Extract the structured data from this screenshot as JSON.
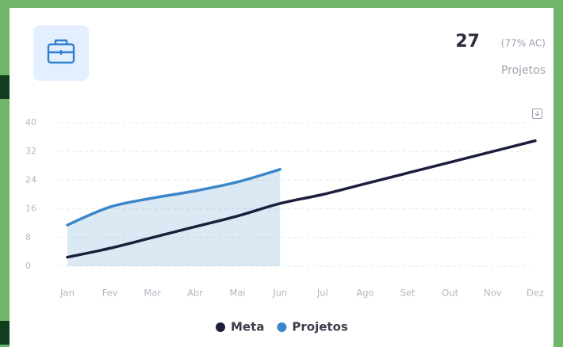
{
  "kpi": {
    "value": 27,
    "note": "(77% AC)",
    "label": "Projetos"
  },
  "chart_data": {
    "type": "line",
    "categories": [
      "Jan",
      "Fev",
      "Mar",
      "Abr",
      "Mai",
      "Jun",
      "Jul",
      "Ago",
      "Set",
      "Out",
      "Nov",
      "Dez"
    ],
    "series": [
      {
        "name": "Meta",
        "color": "#1b1f3b",
        "area": false,
        "values": [
          2.5,
          5,
          8,
          11,
          14,
          17.5,
          20,
          23,
          26,
          29,
          32,
          35
        ]
      },
      {
        "name": "Projetos",
        "color": "#3a86c8",
        "area": true,
        "values": [
          11.5,
          16.5,
          19,
          21,
          23.5,
          27,
          null,
          null,
          null,
          null,
          null,
          null
        ]
      }
    ],
    "ylim": [
      0,
      40
    ],
    "yticks": [
      0,
      8,
      16,
      24,
      32,
      40
    ],
    "grid": true,
    "legend": "bottom"
  }
}
